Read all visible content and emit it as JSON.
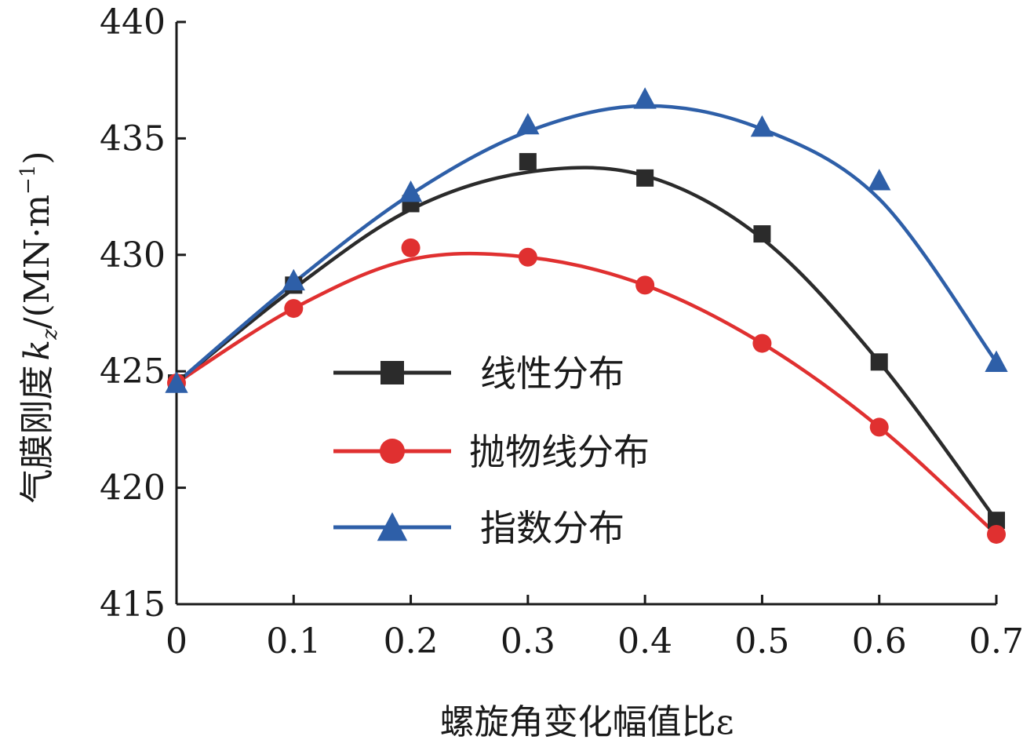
{
  "chart_data": {
    "type": "line",
    "xlabel": "螺旋角变化幅值比ε",
    "ylabel_main": "气膜刚度",
    "ylabel_symbol": "k",
    "ylabel_subscript": "z",
    "ylabel_unit": "/(MN·m",
    "ylabel_unit_exp": "−1",
    "ylabel_unit_close": ")",
    "x": [
      0,
      0.1,
      0.2,
      0.3,
      0.4,
      0.5,
      0.6,
      0.7
    ],
    "x_tick_labels": [
      "0",
      "0.1",
      "0.2",
      "0.3",
      "0.4",
      "0.5",
      "0.6",
      "0.7"
    ],
    "y_tick_labels": [
      "415",
      "420",
      "425",
      "430",
      "435",
      "440"
    ],
    "y_ticks": [
      415,
      420,
      425,
      430,
      435,
      440
    ],
    "xlim": [
      0,
      0.7
    ],
    "ylim": [
      415,
      440
    ],
    "grid": false,
    "legend_position": "center-left",
    "series": [
      {
        "name": "线性分布",
        "marker": "square",
        "color": "#2b2b2b",
        "values": [
          424.5,
          428.7,
          432.2,
          434.0,
          433.3,
          430.9,
          425.4,
          418.6
        ],
        "curve": [
          424.5,
          428.55,
          431.95,
          433.55,
          433.4,
          430.7,
          425.4,
          418.6
        ]
      },
      {
        "name": "抛物线分布",
        "marker": "circle",
        "color": "#e03030",
        "values": [
          424.5,
          427.7,
          430.3,
          429.9,
          428.7,
          426.2,
          422.6,
          418.0
        ],
        "curve": [
          424.5,
          427.7,
          429.8,
          429.9,
          428.7,
          426.2,
          422.6,
          418.0
        ]
      },
      {
        "name": "指数分布",
        "marker": "triangle",
        "color": "#2e5fa8",
        "values": [
          424.5,
          428.9,
          432.7,
          435.6,
          436.7,
          435.5,
          433.2,
          425.4
        ],
        "curve": [
          424.5,
          428.8,
          432.6,
          435.3,
          436.4,
          435.4,
          432.4,
          425.4
        ]
      }
    ]
  }
}
